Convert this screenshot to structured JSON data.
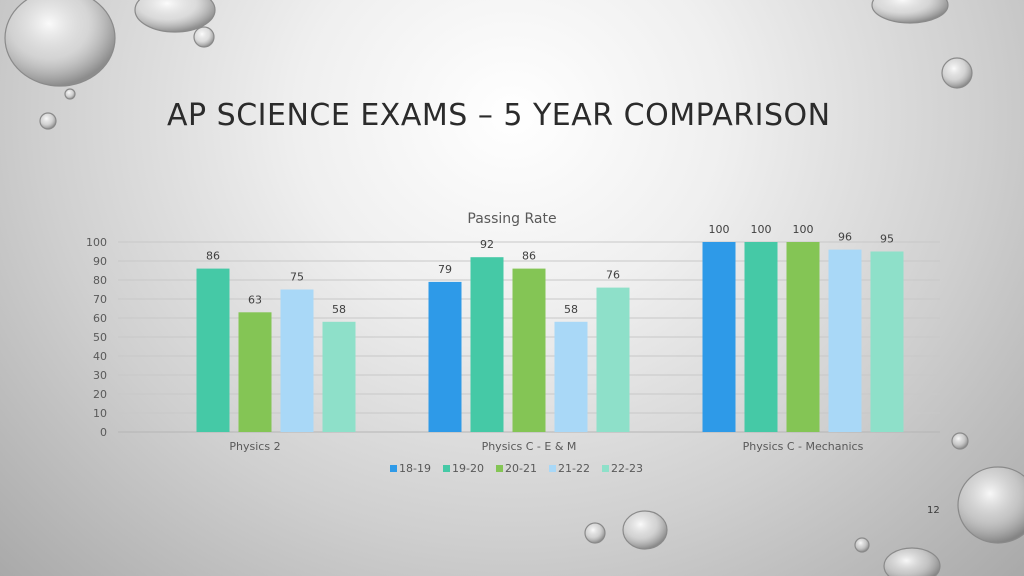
{
  "slide": {
    "title": "AP SCIENCE EXAMS – 5 YEAR COMPARISON",
    "page_number": "12"
  },
  "chart_data": {
    "type": "bar",
    "title": "Passing Rate",
    "categories": [
      "Physics 2",
      "Physics C - E & M",
      "Physics C - Mechanics"
    ],
    "series": [
      {
        "name": "18-19",
        "color": "#2e9ae8",
        "values": [
          null,
          79,
          100
        ]
      },
      {
        "name": "19-20",
        "color": "#45c9a6",
        "values": [
          86,
          92,
          100
        ]
      },
      {
        "name": "20-21",
        "color": "#84c555",
        "values": [
          63,
          86,
          100
        ]
      },
      {
        "name": "21-22",
        "color": "#a9d8f7",
        "values": [
          75,
          58,
          96
        ]
      },
      {
        "name": "22-23",
        "color": "#8ee0c9",
        "values": [
          58,
          76,
          95
        ]
      }
    ],
    "yticks": [
      0,
      10,
      20,
      30,
      40,
      50,
      60,
      70,
      80,
      90,
      100
    ],
    "ylim": [
      0,
      100
    ],
    "grid": true,
    "legend": "bottom"
  }
}
